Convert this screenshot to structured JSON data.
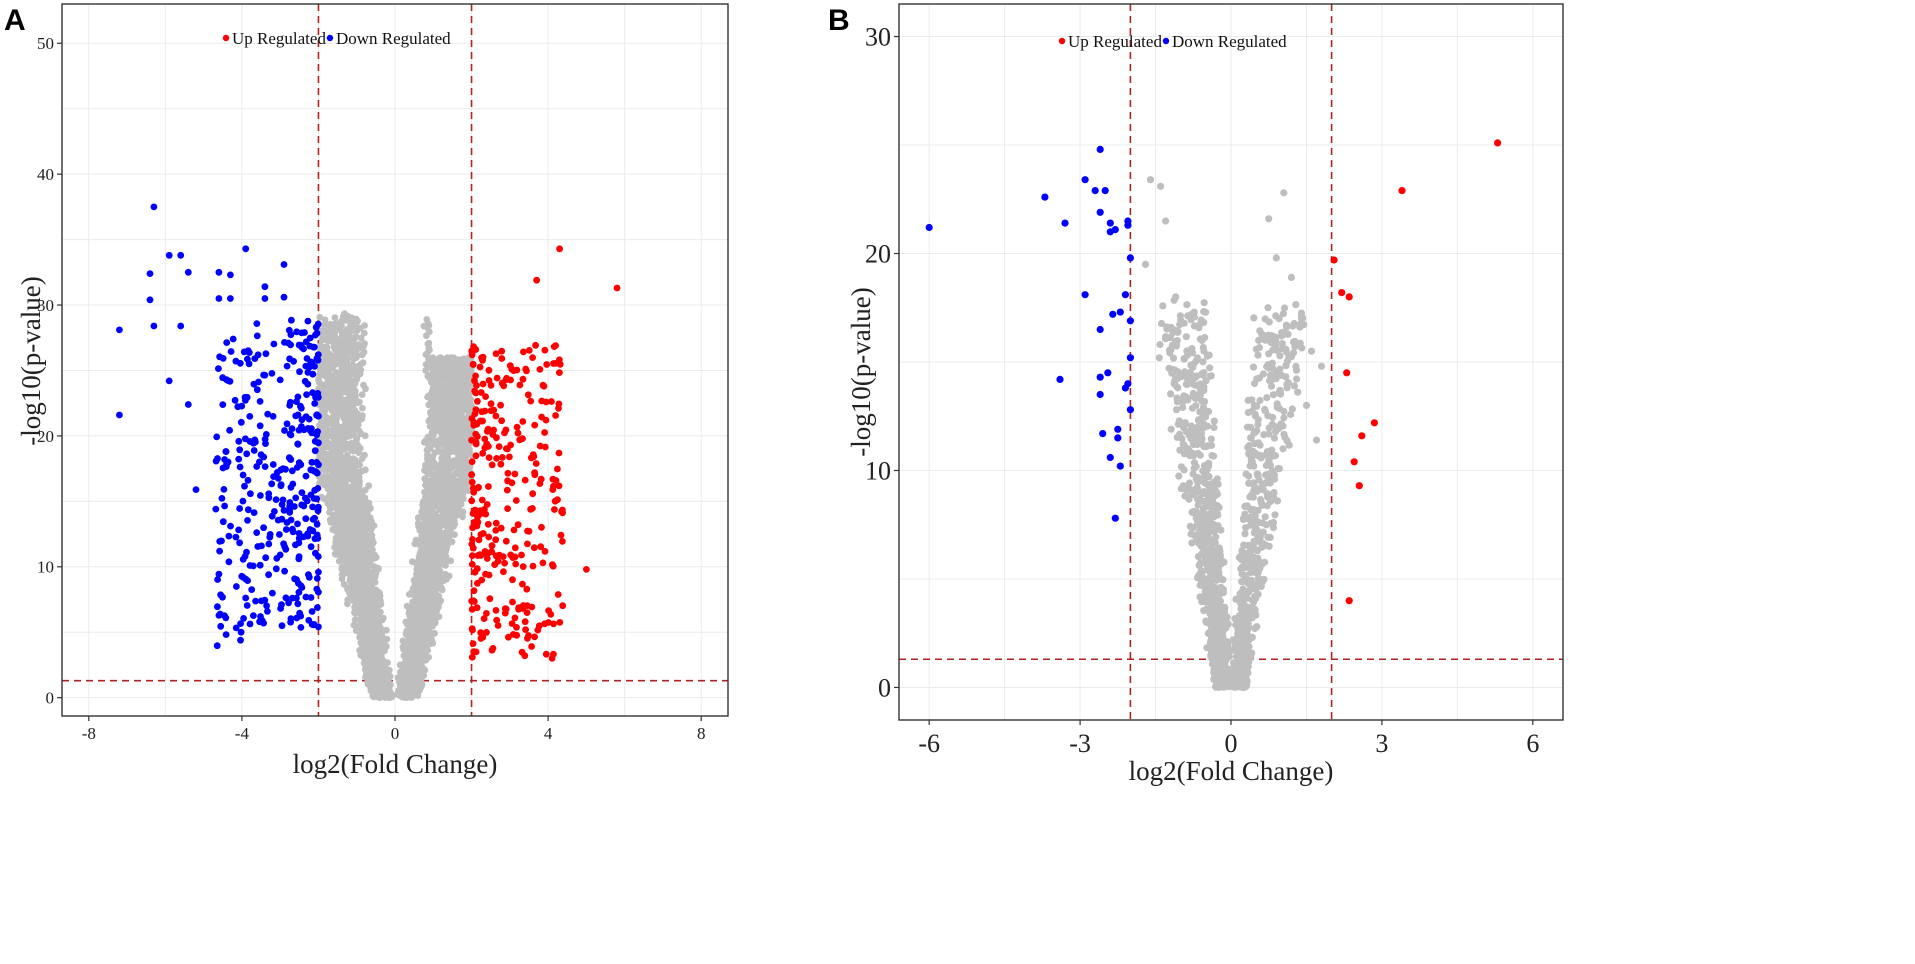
{
  "chart_data": [
    {
      "panel": "A",
      "type": "scatter",
      "subtype": "volcano",
      "xlabel": "log2(Fold Change)",
      "ylabel": "-log10(p-value)",
      "xlim": [
        -8.7,
        8.7
      ],
      "ylim": [
        -1.4,
        53
      ],
      "xticks": [
        -8,
        -4,
        0,
        4,
        8
      ],
      "yticks": [
        0,
        10,
        20,
        30,
        40,
        50
      ],
      "thresholds": {
        "fold_change": [
          -2,
          2
        ],
        "p_value": 1.3
      },
      "legend": [
        {
          "label": "Up Regulated",
          "color": "#ff0000"
        },
        {
          "label": "Down Regulated",
          "color": "#0000ff"
        }
      ],
      "colors": {
        "up": "#ff0000",
        "down": "#0000ff",
        "ns": "#bebebe",
        "threshold": "#b22222"
      },
      "highlighted_points": {
        "down": [
          [
            -6.3,
            37.5
          ],
          [
            -5.9,
            33.8
          ],
          [
            -5.6,
            33.8
          ],
          [
            -6.4,
            32.4
          ],
          [
            -5.4,
            32.5
          ],
          [
            -6.4,
            30.4
          ],
          [
            -7.2,
            28.1
          ],
          [
            -6.3,
            28.4
          ],
          [
            -5.6,
            28.4
          ],
          [
            -5.9,
            24.2
          ],
          [
            -7.2,
            21.6
          ],
          [
            -5.4,
            22.4
          ],
          [
            -5.2,
            15.9
          ],
          [
            -4.6,
            32.5
          ],
          [
            -4.3,
            32.3
          ],
          [
            -3.9,
            34.3
          ],
          [
            -3.4,
            31.4
          ],
          [
            -2.9,
            33.1
          ],
          [
            -4.6,
            30.5
          ],
          [
            -4.3,
            30.5
          ],
          [
            -3.4,
            30.5
          ],
          [
            -2.9,
            30.6
          ]
        ],
        "up": [
          [
            4.3,
            34.3
          ],
          [
            3.7,
            31.9
          ],
          [
            5.8,
            31.3
          ],
          [
            5.0,
            9.8
          ]
        ]
      },
      "generated_cloud": {
        "n_up": 300,
        "n_down": 360,
        "n_ns": 4200
      }
    },
    {
      "panel": "B",
      "type": "scatter",
      "subtype": "volcano",
      "xlabel": "log2(Fold Change)",
      "ylabel": "-log10(p-value)",
      "xlim": [
        -6.6,
        6.6
      ],
      "ylim": [
        -1.5,
        31.5
      ],
      "xticks": [
        -6,
        -3,
        0,
        3,
        6
      ],
      "yticks": [
        0,
        10,
        20,
        30
      ],
      "thresholds": {
        "fold_change": [
          -2,
          2
        ],
        "p_value": 1.3
      },
      "legend": [
        {
          "label": "Up Regulated",
          "color": "#ff0000"
        },
        {
          "label": "Down Regulated",
          "color": "#0000ff"
        }
      ],
      "colors": {
        "up": "#ff0000",
        "down": "#0000ff",
        "ns": "#bebebe",
        "threshold": "#b22222"
      },
      "highlighted_points": {
        "down": [
          [
            -6.0,
            21.2
          ],
          [
            -3.7,
            22.6
          ],
          [
            -2.9,
            23.4
          ],
          [
            -2.6,
            24.8
          ],
          [
            -2.7,
            22.9
          ],
          [
            -2.5,
            22.9
          ],
          [
            -3.3,
            21.4
          ],
          [
            -2.6,
            21.9
          ],
          [
            -2.4,
            21.4
          ],
          [
            -2.4,
            21.0
          ],
          [
            -2.3,
            21.1
          ],
          [
            -2.05,
            21.5
          ],
          [
            -2.05,
            21.3
          ],
          [
            -2.0,
            19.8
          ],
          [
            -2.9,
            18.1
          ],
          [
            -2.1,
            18.1
          ],
          [
            -2.2,
            17.3
          ],
          [
            -2.35,
            17.2
          ],
          [
            -2.6,
            16.5
          ],
          [
            -2.0,
            16.9
          ],
          [
            -2.0,
            15.2
          ],
          [
            -3.4,
            14.2
          ],
          [
            -2.6,
            14.3
          ],
          [
            -2.45,
            14.5
          ],
          [
            -2.1,
            13.8
          ],
          [
            -2.05,
            14.0
          ],
          [
            -2.6,
            13.5
          ],
          [
            -2.0,
            12.8
          ],
          [
            -2.25,
            11.9
          ],
          [
            -2.55,
            11.7
          ],
          [
            -2.25,
            11.5
          ],
          [
            -2.4,
            10.6
          ],
          [
            -2.2,
            10.2
          ],
          [
            -2.3,
            7.8
          ]
        ],
        "up": [
          [
            5.3,
            25.1
          ],
          [
            3.4,
            22.9
          ],
          [
            2.05,
            19.7
          ],
          [
            2.2,
            18.2
          ],
          [
            2.35,
            18.0
          ],
          [
            2.3,
            14.5
          ],
          [
            2.85,
            12.2
          ],
          [
            2.6,
            11.6
          ],
          [
            2.45,
            10.4
          ],
          [
            2.55,
            9.3
          ],
          [
            2.35,
            4.0
          ]
        ],
        "ns": [
          [
            -1.6,
            23.4
          ],
          [
            -1.4,
            23.1
          ],
          [
            -1.3,
            21.5
          ],
          [
            -1.7,
            19.5
          ],
          [
            -1.1,
            18.0
          ],
          [
            1.05,
            22.8
          ],
          [
            0.75,
            21.6
          ],
          [
            0.9,
            19.8
          ],
          [
            1.2,
            18.9
          ],
          [
            1.4,
            17.1
          ],
          [
            1.6,
            15.5
          ],
          [
            1.5,
            13.0
          ],
          [
            1.8,
            14.8
          ],
          [
            1.7,
            11.4
          ]
        ]
      },
      "generated_cloud": {
        "n_ns": 1500
      }
    }
  ]
}
